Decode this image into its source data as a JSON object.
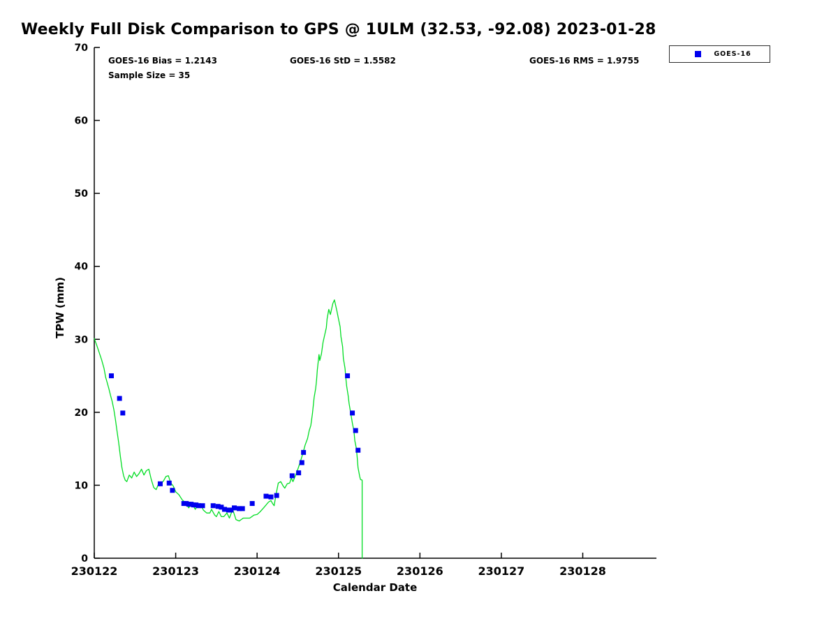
{
  "chart_data": {
    "type": "line",
    "title": "Weekly Full Disk Comparison to GPS @ 1ULM (32.53, -92.08) 2023-01-28",
    "xlabel": "Calendar Date",
    "ylabel": "TPW (mm)",
    "xlim": [
      230122,
      230128.905
    ],
    "ylim": [
      0,
      70
    ],
    "x_ticks": [
      230122,
      230123,
      230124,
      230125,
      230126,
      230127,
      230128
    ],
    "y_ticks": [
      0,
      10,
      20,
      30,
      40,
      50,
      60,
      70
    ],
    "grid": false,
    "annotations": [
      {
        "id": "bias",
        "text": "GOES-16 Bias = 1.2143"
      },
      {
        "id": "std",
        "text": "GOES-16 StD = 1.5582"
      },
      {
        "id": "rms",
        "text": "GOES-16 RMS = 1.9755"
      },
      {
        "id": "sample",
        "text": "Sample Size = 35"
      }
    ],
    "legend": {
      "position": "top-right",
      "entries": [
        {
          "label": "GOES-16",
          "marker": "square",
          "color": "#0000ee"
        }
      ]
    },
    "series": [
      {
        "name": "GPS TPW trace",
        "type": "line",
        "color": "#00dd22",
        "width": 1.3,
        "points": [
          [
            230122.0,
            30.1
          ],
          [
            230122.03,
            29.2
          ],
          [
            230122.06,
            28.2
          ],
          [
            230122.09,
            27.2
          ],
          [
            230122.12,
            26.0
          ],
          [
            230122.14,
            24.8
          ],
          [
            230122.16,
            24.0
          ],
          [
            230122.18,
            23.2
          ],
          [
            230122.2,
            22.3
          ],
          [
            230122.22,
            21.5
          ],
          [
            230122.24,
            20.4
          ],
          [
            230122.26,
            19.0
          ],
          [
            230122.28,
            17.4
          ],
          [
            230122.3,
            15.8
          ],
          [
            230122.32,
            14.0
          ],
          [
            230122.34,
            12.4
          ],
          [
            230122.36,
            11.3
          ],
          [
            230122.38,
            10.7
          ],
          [
            230122.4,
            10.5
          ],
          [
            230122.43,
            11.4
          ],
          [
            230122.46,
            11.0
          ],
          [
            230122.49,
            11.8
          ],
          [
            230122.52,
            11.2
          ],
          [
            230122.55,
            11.6
          ],
          [
            230122.58,
            12.2
          ],
          [
            230122.61,
            11.4
          ],
          [
            230122.64,
            12.0
          ],
          [
            230122.67,
            12.2
          ],
          [
            230122.7,
            10.8
          ],
          [
            230122.73,
            9.7
          ],
          [
            230122.76,
            9.4
          ],
          [
            230122.79,
            10.2
          ],
          [
            230122.82,
            10.2
          ],
          [
            230122.85,
            10.6
          ],
          [
            230122.88,
            11.2
          ],
          [
            230122.91,
            11.3
          ],
          [
            230122.94,
            10.3
          ],
          [
            230122.97,
            9.9
          ],
          [
            230123.0,
            9.1
          ],
          [
            230123.04,
            8.7
          ],
          [
            230123.08,
            8.0
          ],
          [
            230123.12,
            7.6
          ],
          [
            230123.16,
            6.9
          ],
          [
            230123.2,
            7.5
          ],
          [
            230123.24,
            6.7
          ],
          [
            230123.28,
            7.4
          ],
          [
            230123.3,
            7.5
          ],
          [
            230123.34,
            6.6
          ],
          [
            230123.38,
            6.2
          ],
          [
            230123.42,
            6.2
          ],
          [
            230123.44,
            6.7
          ],
          [
            230123.48,
            5.9
          ],
          [
            230123.5,
            5.7
          ],
          [
            230123.53,
            6.4
          ],
          [
            230123.56,
            5.7
          ],
          [
            230123.59,
            5.7
          ],
          [
            230123.63,
            6.2
          ],
          [
            230123.66,
            5.5
          ],
          [
            230123.7,
            6.7
          ],
          [
            230123.74,
            5.3
          ],
          [
            230123.78,
            5.1
          ],
          [
            230123.83,
            5.5
          ],
          [
            230123.87,
            5.5
          ],
          [
            230123.91,
            5.5
          ],
          [
            230123.96,
            5.9
          ],
          [
            230124.0,
            6.0
          ],
          [
            230124.04,
            6.4
          ],
          [
            230124.08,
            6.9
          ],
          [
            230124.14,
            7.7
          ],
          [
            230124.17,
            7.9
          ],
          [
            230124.19,
            7.5
          ],
          [
            230124.21,
            7.2
          ],
          [
            230124.23,
            8.6
          ],
          [
            230124.26,
            10.3
          ],
          [
            230124.29,
            10.5
          ],
          [
            230124.32,
            9.9
          ],
          [
            230124.34,
            9.6
          ],
          [
            230124.37,
            10.2
          ],
          [
            230124.4,
            10.3
          ],
          [
            230124.42,
            11.0
          ],
          [
            230124.44,
            10.5
          ],
          [
            230124.47,
            11.3
          ],
          [
            230124.5,
            12.2
          ],
          [
            230124.53,
            13.2
          ],
          [
            230124.56,
            14.3
          ],
          [
            230124.59,
            15.5
          ],
          [
            230124.62,
            16.4
          ],
          [
            230124.64,
            17.5
          ],
          [
            230124.66,
            18.2
          ],
          [
            230124.68,
            19.8
          ],
          [
            230124.7,
            22.0
          ],
          [
            230124.72,
            23.3
          ],
          [
            230124.73,
            24.4
          ],
          [
            230124.74,
            25.8
          ],
          [
            230124.76,
            27.9
          ],
          [
            230124.77,
            27.1
          ],
          [
            230124.79,
            28.0
          ],
          [
            230124.81,
            29.6
          ],
          [
            230124.85,
            31.6
          ],
          [
            230124.86,
            32.8
          ],
          [
            230124.88,
            34.1
          ],
          [
            230124.9,
            33.4
          ],
          [
            230124.93,
            34.9
          ],
          [
            230124.95,
            35.4
          ],
          [
            230124.98,
            33.9
          ],
          [
            230125.0,
            32.8
          ],
          [
            230125.02,
            31.7
          ],
          [
            230125.03,
            30.4
          ],
          [
            230125.05,
            29.0
          ],
          [
            230125.06,
            27.4
          ],
          [
            230125.08,
            26.0
          ],
          [
            230125.09,
            24.7
          ],
          [
            230125.1,
            23.6
          ],
          [
            230125.12,
            22.2
          ],
          [
            230125.13,
            21.2
          ],
          [
            230125.15,
            19.9
          ],
          [
            230125.17,
            18.5
          ],
          [
            230125.19,
            17.4
          ],
          [
            230125.2,
            16.1
          ],
          [
            230125.22,
            15.0
          ],
          [
            230125.23,
            13.7
          ],
          [
            230125.24,
            12.4
          ],
          [
            230125.26,
            11.2
          ],
          [
            230125.27,
            10.8
          ],
          [
            230125.29,
            10.7
          ],
          [
            230125.29,
            0.0
          ]
        ]
      },
      {
        "name": "GOES-16",
        "type": "scatter",
        "marker": "square",
        "color": "#0000ee",
        "marker_size": 7,
        "points": [
          [
            230122.21,
            25.0
          ],
          [
            230122.31,
            21.9
          ],
          [
            230122.35,
            19.9
          ],
          [
            230122.81,
            10.2
          ],
          [
            230122.92,
            10.3
          ],
          [
            230122.96,
            9.3
          ],
          [
            230123.1,
            7.5
          ],
          [
            230123.13,
            7.5
          ],
          [
            230123.16,
            7.4
          ],
          [
            230123.19,
            7.4
          ],
          [
            230123.22,
            7.3
          ],
          [
            230123.25,
            7.3
          ],
          [
            230123.28,
            7.2
          ],
          [
            230123.33,
            7.2
          ],
          [
            230123.46,
            7.2
          ],
          [
            230123.52,
            7.1
          ],
          [
            230123.56,
            7.0
          ],
          [
            230123.6,
            6.7
          ],
          [
            230123.65,
            6.6
          ],
          [
            230123.68,
            6.6
          ],
          [
            230123.72,
            6.9
          ],
          [
            230123.78,
            6.8
          ],
          [
            230123.82,
            6.8
          ],
          [
            230123.94,
            7.5
          ],
          [
            230124.11,
            8.5
          ],
          [
            230124.17,
            8.4
          ],
          [
            230124.24,
            8.6
          ],
          [
            230124.43,
            11.3
          ],
          [
            230124.51,
            11.7
          ],
          [
            230124.55,
            13.1
          ],
          [
            230124.57,
            14.5
          ],
          [
            230125.11,
            25.0
          ],
          [
            230125.17,
            19.9
          ],
          [
            230125.21,
            17.5
          ],
          [
            230125.24,
            14.8
          ]
        ]
      }
    ],
    "axis_color": "#000000"
  }
}
